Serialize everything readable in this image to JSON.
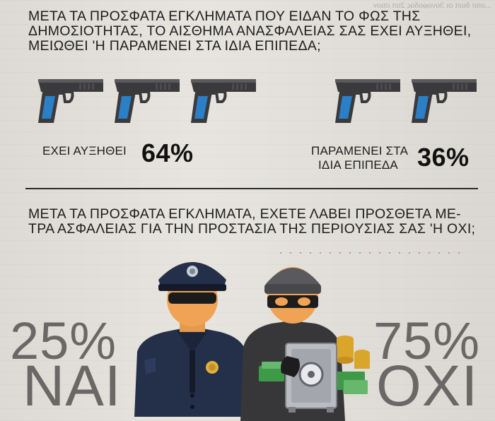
{
  "bleed_text": "...οπσ διοπ οι 3ονοφοδος 2οπ ιπιον",
  "question1": {
    "lines": [
      "ΜΕΤΑ ΤΑ ΠΡΟΣΦΑΤΑ ΕΓΚΛΗΜΑΤΑ ΠΟΥ ΕΙΔΑΝ ΤΟ ΦΩΣ ΤΗΣ",
      "ΔΗΜΟΣΙΟΤΗΤΑΣ, ΤΟ ΑΙΣΘΗΜΑ ΑΝΑΣΦΑΛΕΙΑΣ ΣΑΣ ΕΧΕΙ ΑΥΞΗΘΕΙ,",
      "ΜΕΙΩΘΕΙ 'Η ΠΑΡΑΜΕΝΕΙ ΣΤΑ ΙΔΙΑ ΕΠΙΠΕΔΑ;"
    ]
  },
  "answer_increased": {
    "label": "ΕΧΕΙ ΑΥΞΗΘΕΙ",
    "percent_text": "64%",
    "percent_value": 64,
    "icon_count": 3,
    "icon": "pistol-icon"
  },
  "answer_same": {
    "label_lines": [
      "ΠΑΡΑΜΕΝΕΙ ΣΤΑ",
      "ΙΔΙΑ ΕΠΙΠΕΔΑ"
    ],
    "percent_text": "36%",
    "percent_value": 36,
    "icon_count": 2,
    "icon": "pistol-icon"
  },
  "question2": {
    "lines": [
      "ΜΕΤΑ ΤΑ ΠΡΟΣΦΑΤΑ ΕΓΚΛΗΜΑΤΑ, ΕΧΕΤΕ ΛΑΒΕΙ ΠΡΟΣΘΕΤΑ ΜΕ-",
      "ΤΡΑ ΑΣΦΑΛΕΙΑΣ ΓΙΑ ΤΗΝ ΠΡΟΣΤΑΣΙΑ ΤΗΣ ΠΕΡΙΟΥΣΙΑΣ ΣΑΣ 'Η ΟΧΙ;"
    ]
  },
  "answer_yes": {
    "percent_text": "25%",
    "word": "ΝΑΙ",
    "percent_value": 25,
    "icon": "police-officer-icon"
  },
  "answer_no": {
    "percent_text": "75%",
    "word": "ΟΧΙ",
    "percent_value": 75,
    "icon": "burglar-with-safe-icon"
  },
  "colors": {
    "background": "#e6e3dd",
    "gun_body": "#3a3a3c",
    "gun_grip": "#2a7fc6",
    "text": "#1c1c1c",
    "stat_grey": "#6a6867",
    "police_uniform": "#232f4a",
    "gold": "#d9a52b",
    "money_green": "#3f9a48"
  }
}
